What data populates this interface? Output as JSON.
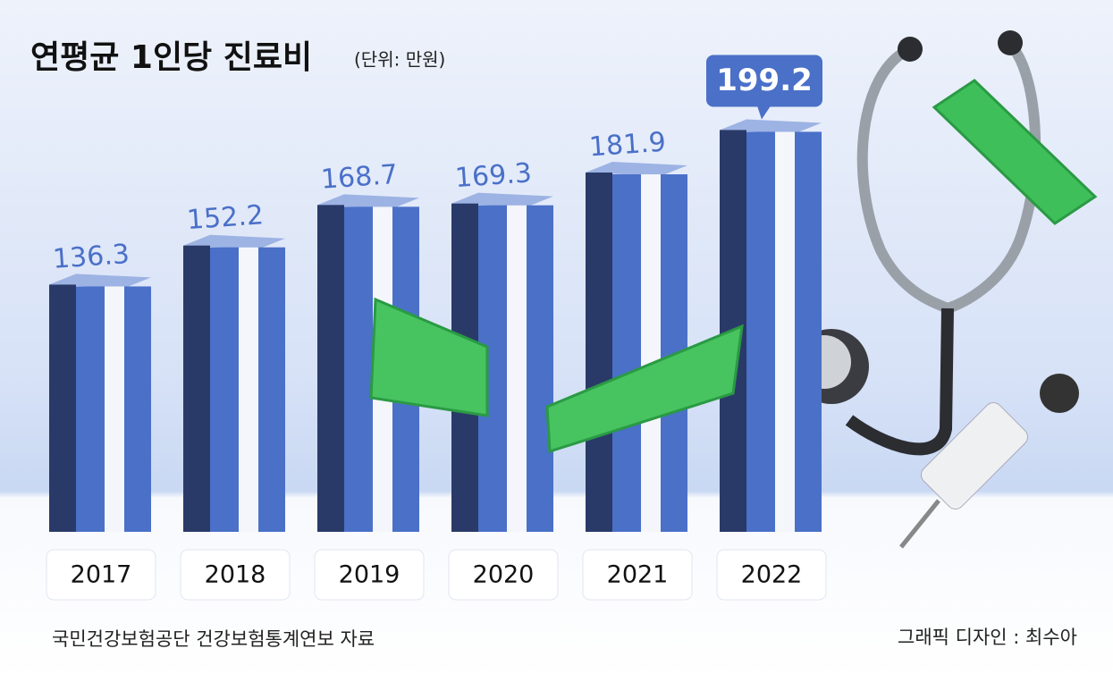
{
  "chart_data": {
    "type": "bar",
    "title": "연평균 1인당 진료비",
    "subtitle": "(단위: 만원)",
    "categories": [
      "2017",
      "2018",
      "2019",
      "2020",
      "2021",
      "2022"
    ],
    "values": [
      136.3,
      152.2,
      168.7,
      169.3,
      181.9,
      199.2
    ],
    "color": "#4a70c8",
    "ylim": [
      35,
      215
    ],
    "source": "국민건강보험공단 건강보험통계연보 자료",
    "credit": "그래픽 디자인 : 최수아"
  }
}
